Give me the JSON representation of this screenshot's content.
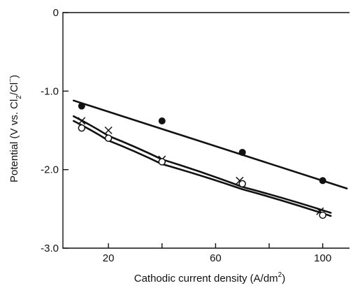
{
  "chart_data": {
    "type": "scatter",
    "title": "",
    "xlabel": "Cathodic current density (A/dm",
    "xlabel_superscript": "2",
    "xlabel_suffix": ")",
    "ylabel": "Potential (V vs. Cl",
    "ylabel_subscript": "2",
    "ylabel_suffix": "/Cl",
    "ylabel_superscript": "−",
    "ylabel_close": ")",
    "xlim": [
      3,
      110
    ],
    "ylim": [
      -3.0,
      0
    ],
    "x_ticks": [
      {
        "value": 20,
        "label": "20"
      },
      {
        "value": 60,
        "label": "60"
      },
      {
        "value": 100,
        "label": "100"
      }
    ],
    "x_minor_ticks": [
      40,
      80
    ],
    "y_ticks": [
      {
        "value": 0,
        "label": "0"
      },
      {
        "value": -1.0,
        "label": "-1.0"
      },
      {
        "value": -2.0,
        "label": "-2.0"
      },
      {
        "value": -3.0,
        "label": "-3.0"
      }
    ],
    "grid": false,
    "series": [
      {
        "marker": "filled-circle",
        "points": [
          [
            10,
            -1.19
          ],
          [
            40,
            -1.38
          ],
          [
            70,
            -1.78
          ],
          [
            100,
            -2.14
          ]
        ],
        "fit": [
          [
            7,
            -1.12
          ],
          [
            109,
            -2.24
          ]
        ]
      },
      {
        "marker": "cross",
        "points": [
          [
            10,
            -1.38
          ],
          [
            20,
            -1.5
          ],
          [
            40,
            -1.87
          ],
          [
            69,
            -2.14
          ],
          [
            99,
            -2.53
          ]
        ],
        "fit": [
          [
            7,
            -1.32
          ],
          [
            20,
            -1.57
          ],
          [
            40,
            -1.87
          ],
          [
            70,
            -2.22
          ],
          [
            103,
            -2.55
          ]
        ]
      },
      {
        "marker": "open-circle",
        "points": [
          [
            10,
            -1.47
          ],
          [
            20,
            -1.6
          ],
          [
            40,
            -1.9
          ],
          [
            70,
            -2.18
          ],
          [
            100,
            -2.58
          ]
        ],
        "fit": [
          [
            7,
            -1.38
          ],
          [
            20,
            -1.63
          ],
          [
            40,
            -1.93
          ],
          [
            70,
            -2.25
          ],
          [
            103,
            -2.59
          ]
        ]
      }
    ]
  }
}
